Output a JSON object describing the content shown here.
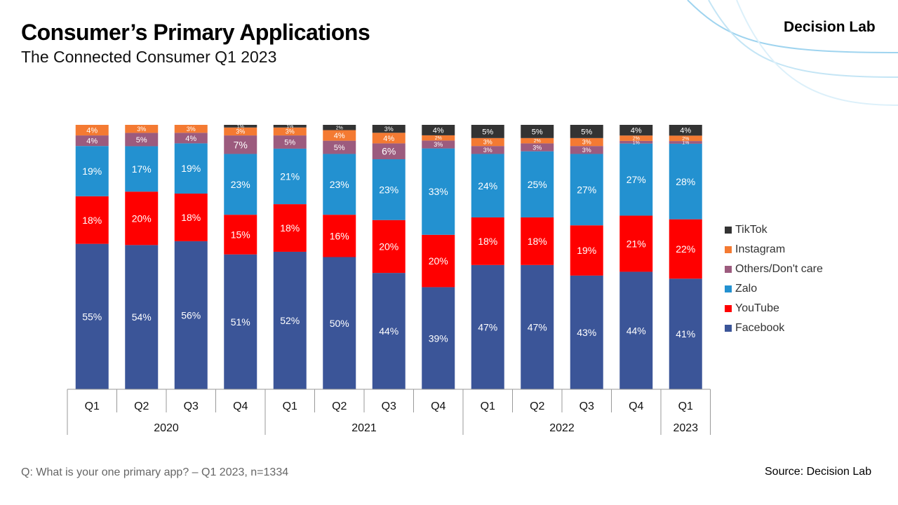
{
  "header": {
    "title": "Consumer’s Primary Applications",
    "subtitle": "The Connected Consumer Q1 2023",
    "brand": "Decision Lab"
  },
  "footer": {
    "question": "Q: What is your one primary app? – Q1 2023, n=1334",
    "source": "Source: Decision Lab"
  },
  "colors": {
    "Facebook": "#3b5598",
    "YouTube": "#ff0000",
    "Zalo": "#2391d0",
    "Others/Don't care": "#9c5b7e",
    "Instagram": "#f47a32",
    "TikTok": "#333333"
  },
  "chart_data": {
    "type": "bar",
    "stacked": true,
    "categories": [
      "Q1",
      "Q2",
      "Q3",
      "Q4",
      "Q1",
      "Q2",
      "Q3",
      "Q4",
      "Q1",
      "Q2",
      "Q3",
      "Q4",
      "Q1"
    ],
    "groups": [
      {
        "label": "2020",
        "count": 4
      },
      {
        "label": "2021",
        "count": 4
      },
      {
        "label": "2022",
        "count": 4
      },
      {
        "label": "2023",
        "count": 1
      }
    ],
    "series": [
      {
        "name": "Facebook",
        "values": [
          55,
          54,
          56,
          51,
          52,
          50,
          44,
          39,
          47,
          47,
          43,
          44,
          41
        ]
      },
      {
        "name": "YouTube",
        "values": [
          18,
          20,
          18,
          15,
          18,
          16,
          20,
          20,
          18,
          18,
          19,
          21,
          22
        ]
      },
      {
        "name": "Zalo",
        "values": [
          19,
          17,
          19,
          23,
          21,
          23,
          23,
          33,
          24,
          25,
          27,
          27,
          28
        ]
      },
      {
        "name": "Others/Don't care",
        "values": [
          4,
          5,
          4,
          7,
          5,
          5,
          6,
          3,
          3,
          3,
          3,
          1,
          1
        ]
      },
      {
        "name": "Instagram",
        "values": [
          4,
          3,
          3,
          3,
          3,
          4,
          4,
          2,
          3,
          2,
          3,
          2,
          2
        ]
      },
      {
        "name": "TikTok",
        "values": [
          0,
          0,
          0,
          1,
          1,
          2,
          3,
          4,
          5,
          5,
          5,
          4,
          4
        ]
      }
    ],
    "legend": [
      "TikTok",
      "Instagram",
      "Others/Don't care",
      "Zalo",
      "YouTube",
      "Facebook"
    ],
    "legend_position": "right",
    "ylim": [
      0,
      100
    ],
    "grid": false
  }
}
